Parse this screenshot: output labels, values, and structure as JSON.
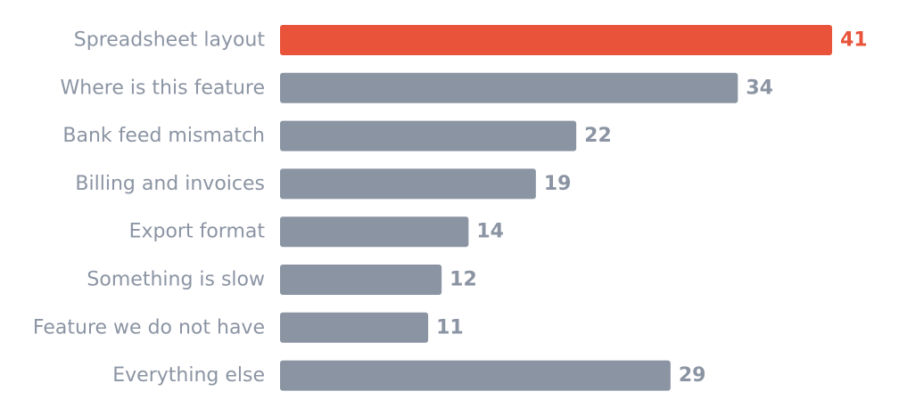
{
  "chart_data": {
    "type": "bar",
    "orientation": "horizontal",
    "categories": [
      "Spreadsheet layout",
      "Where is this feature",
      "Bank feed mismatch",
      "Billing and invoices",
      "Export format",
      "Something is slow",
      "Feature we do not have",
      "Everything else"
    ],
    "values": [
      41,
      34,
      22,
      19,
      14,
      12,
      11,
      29
    ],
    "highlight_index": 0,
    "title": "",
    "xlabel": "",
    "ylabel": "",
    "xlim": [
      0,
      41
    ],
    "grid": false,
    "legend": "none",
    "colors": {
      "highlight": "#e8533a",
      "default": "#8b94a3"
    }
  }
}
